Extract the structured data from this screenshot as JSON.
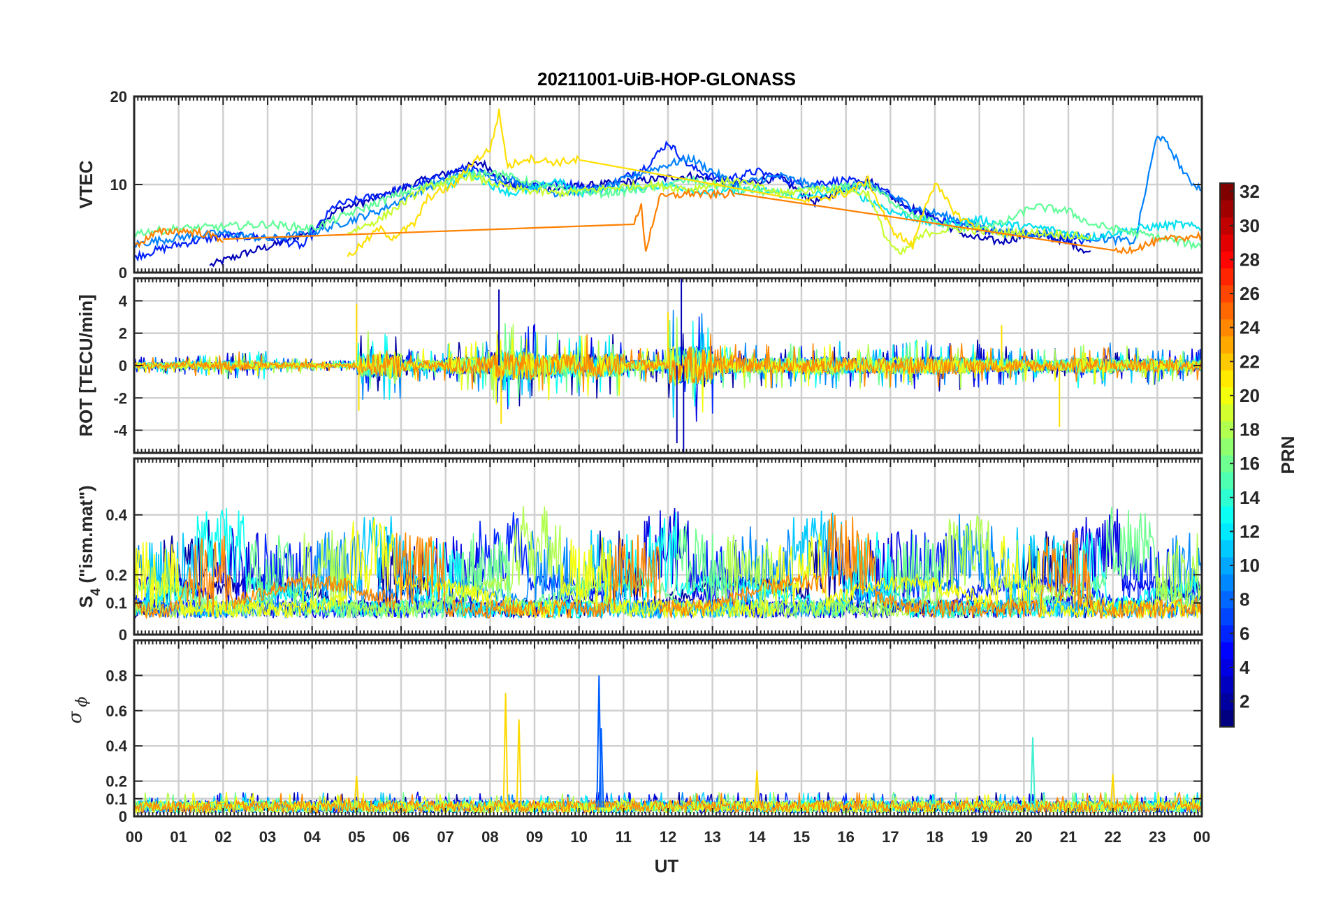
{
  "figure": {
    "title": "20211001-UiB-HOP-GLONASS",
    "x_axis": {
      "label": "UT",
      "range_hours": [
        0,
        24
      ],
      "tick_labels": [
        "00",
        "01",
        "02",
        "03",
        "04",
        "05",
        "06",
        "07",
        "08",
        "09",
        "10",
        "11",
        "12",
        "13",
        "14",
        "15",
        "16",
        "17",
        "18",
        "19",
        "20",
        "21",
        "22",
        "23",
        "00"
      ]
    }
  },
  "colorbar": {
    "label": "PRN",
    "range": [
      1,
      32
    ],
    "tick_labels": [
      "2",
      "4",
      "6",
      "8",
      "10",
      "12",
      "14",
      "16",
      "18",
      "20",
      "22",
      "24",
      "26",
      "28",
      "30",
      "32"
    ],
    "colormap": "jet"
  },
  "chart_data": [
    {
      "type": "line",
      "id": "vtec",
      "ylabel": "VTEC",
      "ylim": [
        0,
        20
      ],
      "y_tick_values": [
        0,
        10,
        20
      ],
      "y_tick_labels": [
        "0",
        "10",
        "20"
      ],
      "grid": true,
      "x_unit": "hours UT",
      "series": [
        {
          "prn": 2,
          "color": "#0000b8",
          "points": [
            [
              1.7,
              0.8
            ],
            [
              2.5,
              2.2
            ],
            [
              3.2,
              3.2
            ],
            [
              4.0,
              4.8
            ],
            [
              4.6,
              7.2
            ],
            [
              5.5,
              8.5
            ],
            [
              6.5,
              10.5
            ],
            [
              7.2,
              11.5
            ],
            [
              7.8,
              12.5
            ],
            [
              8.5,
              10.0
            ],
            [
              9.5,
              9.5
            ],
            [
              10.5,
              10.0
            ],
            [
              11.5,
              10.5
            ],
            [
              12.5,
              11.0
            ],
            [
              13.5,
              10.0
            ],
            [
              14.5,
              10.8
            ],
            [
              15.3,
              8.0
            ],
            [
              16.0,
              9.5
            ],
            [
              16.5,
              10.5
            ],
            [
              17.2,
              8.0
            ],
            [
              18.0,
              6.0
            ],
            [
              18.8,
              4.0
            ],
            [
              19.5,
              3.5
            ],
            [
              20.2,
              4.5
            ],
            [
              21.0,
              3.5
            ],
            [
              21.5,
              2.2
            ]
          ]
        },
        {
          "prn": 4,
          "color": "#0020ff",
          "points": [
            [
              0.0,
              1.8
            ],
            [
              1.0,
              3.2
            ],
            [
              2.0,
              4.2
            ],
            [
              3.0,
              4.0
            ],
            [
              3.8,
              3.0
            ],
            [
              4.5,
              7.6
            ],
            [
              5.5,
              8.8
            ],
            [
              6.5,
              10.2
            ],
            [
              7.5,
              12.0
            ],
            [
              8.5,
              9.8
            ],
            [
              9.5,
              10.2
            ],
            [
              10.5,
              9.5
            ],
            [
              11.5,
              12.0
            ],
            [
              12.0,
              14.8
            ],
            [
              12.5,
              12.0
            ],
            [
              13.2,
              10.5
            ],
            [
              14.0,
              11.5
            ],
            [
              15.0,
              10.0
            ],
            [
              16.0,
              10.5
            ],
            [
              16.8,
              9.5
            ],
            [
              17.5,
              7.0
            ],
            [
              18.5,
              5.5
            ],
            [
              19.5,
              4.5
            ],
            [
              20.5,
              4.0
            ],
            [
              21.5,
              3.5
            ]
          ]
        },
        {
          "prn": 9,
          "color": "#0080ff",
          "points": [
            [
              0.0,
              3.2
            ],
            [
              1.0,
              4.0
            ],
            [
              2.0,
              4.5
            ],
            [
              3.0,
              3.8
            ],
            [
              4.0,
              4.5
            ],
            [
              5.5,
              7.0
            ],
            [
              6.5,
              9.5
            ],
            [
              7.5,
              11.5
            ],
            [
              8.5,
              10.5
            ],
            [
              9.5,
              9.0
            ],
            [
              10.5,
              9.5
            ],
            [
              11.5,
              11.5
            ],
            [
              12.5,
              13.0
            ],
            [
              13.5,
              10.0
            ],
            [
              14.5,
              11.0
            ],
            [
              15.5,
              9.5
            ],
            [
              16.5,
              10.0
            ],
            [
              17.5,
              7.5
            ],
            [
              18.5,
              6.0
            ],
            [
              19.5,
              4.5
            ],
            [
              20.5,
              4.5
            ],
            [
              21.5,
              4.0
            ],
            [
              22.5,
              3.5
            ],
            [
              23.0,
              15.8
            ],
            [
              23.3,
              14.0
            ],
            [
              23.7,
              10.5
            ],
            [
              24.0,
              9.5
            ]
          ]
        },
        {
          "prn": 13,
          "color": "#00e0f0",
          "points": [
            [
              7.0,
              9.5
            ],
            [
              7.5,
              11.5
            ],
            [
              8.0,
              10.0
            ],
            [
              8.5,
              9.0
            ],
            [
              9.0,
              9.5
            ],
            [
              9.5,
              10.5
            ],
            [
              10.0,
              9.0
            ],
            [
              10.5,
              9.5
            ],
            [
              11.0,
              9.5
            ],
            [
              12.0,
              10.0
            ],
            [
              13.0,
              9.0
            ],
            [
              14.0,
              9.5
            ],
            [
              15.0,
              8.5
            ],
            [
              16.0,
              9.5
            ],
            [
              17.0,
              7.0
            ],
            [
              18.0,
              5.5
            ],
            [
              19.0,
              6.0
            ],
            [
              19.5,
              5.5
            ],
            [
              20.5,
              5.0
            ],
            [
              21.5,
              4.0
            ],
            [
              22.5,
              5.0
            ],
            [
              23.5,
              5.5
            ],
            [
              24.0,
              5.0
            ]
          ]
        },
        {
          "prn": 16,
          "color": "#60ff98",
          "points": [
            [
              0.0,
              4.5
            ],
            [
              1.0,
              5.0
            ],
            [
              2.0,
              5.2
            ],
            [
              3.0,
              5.5
            ],
            [
              4.0,
              5.0
            ],
            [
              5.0,
              7.0
            ],
            [
              6.0,
              9.0
            ],
            [
              7.0,
              10.5
            ],
            [
              8.0,
              11.5
            ],
            [
              8.7,
              10.5
            ],
            [
              9.5,
              9.5
            ],
            [
              10.5,
              9.0
            ],
            [
              11.5,
              9.5
            ],
            [
              12.5,
              10.5
            ],
            [
              13.5,
              9.5
            ],
            [
              14.5,
              9.0
            ],
            [
              15.5,
              9.5
            ],
            [
              16.5,
              10.0
            ],
            [
              17.5,
              6.5
            ],
            [
              18.5,
              5.0
            ],
            [
              19.5,
              5.5
            ],
            [
              20.2,
              7.5
            ],
            [
              21.0,
              7.0
            ],
            [
              21.5,
              5.5
            ],
            [
              22.5,
              4.5
            ],
            [
              23.5,
              3.5
            ],
            [
              24.0,
              3.0
            ]
          ]
        },
        {
          "prn": 18,
          "color": "#c8ff30",
          "points": [
            [
              4.8,
              4.5
            ],
            [
              5.5,
              6.0
            ],
            [
              6.5,
              9.5
            ],
            [
              7.5,
              11.0
            ],
            [
              8.5,
              9.5
            ],
            [
              9.5,
              9.0
            ],
            [
              10.5,
              9.5
            ],
            [
              11.5,
              10.0
            ],
            [
              12.5,
              9.5
            ],
            [
              13.5,
              10.5
            ],
            [
              14.5,
              9.0
            ],
            [
              15.5,
              9.5
            ],
            [
              16.5,
              9.0
            ],
            [
              16.9,
              4.0
            ],
            [
              17.2,
              2.0
            ],
            [
              17.8,
              4.5
            ],
            [
              18.5,
              5.0
            ],
            [
              19.5,
              4.5
            ],
            [
              20.5,
              4.5
            ],
            [
              21.5,
              4.0
            ]
          ]
        },
        {
          "prn": 20,
          "color": "#ffe000",
          "points": [
            [
              4.8,
              1.8
            ],
            [
              5.2,
              3.5
            ],
            [
              5.5,
              5.0
            ],
            [
              5.8,
              4.0
            ],
            [
              6.3,
              5.5
            ],
            [
              6.6,
              8.5
            ],
            [
              7.2,
              10.0
            ],
            [
              7.6,
              12.5
            ],
            [
              8.0,
              14.0
            ],
            [
              8.2,
              18.2
            ],
            [
              8.4,
              12.0
            ],
            [
              8.8,
              13.0
            ],
            [
              9.5,
              12.5
            ],
            [
              10.0,
              12.8
            ],
            [
              15.0,
              8.0
            ],
            [
              16.0,
              9.0
            ],
            [
              16.5,
              10.5
            ],
            [
              17.0,
              5.0
            ],
            [
              17.5,
              3.0
            ],
            [
              17.8,
              8.0
            ],
            [
              18.0,
              10.0
            ],
            [
              18.5,
              6.5
            ],
            [
              19.0,
              5.0
            ]
          ]
        },
        {
          "prn": 24,
          "color": "#ff8000",
          "points": [
            [
              0.0,
              3.0
            ],
            [
              0.5,
              4.5
            ],
            [
              1.0,
              4.8
            ],
            [
              1.5,
              4.5
            ],
            [
              2.0,
              3.8
            ],
            [
              11.2,
              5.0
            ],
            [
              11.4,
              7.5
            ],
            [
              11.5,
              2.5
            ],
            [
              11.8,
              8.5
            ],
            [
              12.5,
              9.0
            ],
            [
              13.0,
              8.8
            ],
            [
              13.5,
              9.0
            ],
            [
              22.0,
              2.2
            ],
            [
              22.5,
              2.8
            ],
            [
              23.0,
              3.5
            ],
            [
              23.5,
              4.0
            ],
            [
              24.0,
              4.2
            ]
          ]
        }
      ]
    },
    {
      "type": "line",
      "id": "rot",
      "ylabel": "ROT [TECU/min]",
      "ylim": [
        -5.4,
        5.4
      ],
      "y_tick_values": [
        -4,
        -2,
        0,
        2,
        4
      ],
      "y_tick_labels": [
        "-4",
        "-2",
        "0",
        "2",
        "4"
      ],
      "grid": true,
      "x_unit": "hours UT",
      "noise_amplitude_by_hour": [
        0.3,
        0.4,
        0.5,
        0.3,
        0.2,
        1.2,
        0.6,
        0.9,
        1.5,
        1.2,
        1.2,
        0.6,
        2.0,
        0.8,
        0.8,
        0.9,
        0.8,
        0.9,
        0.9,
        0.7,
        0.6,
        0.8,
        0.7,
        0.6
      ],
      "spikes": [
        {
          "t": 5.0,
          "value": 3.8
        },
        {
          "t": 5.05,
          "value": -2.8
        },
        {
          "t": 8.2,
          "value": 4.7
        },
        {
          "t": 8.25,
          "value": -3.6
        },
        {
          "t": 12.3,
          "value": 5.4
        },
        {
          "t": 12.35,
          "value": -5.4
        },
        {
          "t": 12.2,
          "value": -4.8
        },
        {
          "t": 12.0,
          "value": 3.3
        },
        {
          "t": 20.8,
          "value": -3.8
        },
        {
          "t": 19.5,
          "value": 2.5
        }
      ]
    },
    {
      "type": "line",
      "id": "s4",
      "ylabel": "S4 (\"ism.mat\")",
      "ylabel_main": "S",
      "ylabel_sub": "4",
      "ylabel_rest": " (\"ism.mat\")",
      "ylim": [
        0,
        0.6
      ],
      "scale": "log-like",
      "y_tick_values": [
        0,
        0.1,
        0.2,
        0.4
      ],
      "y_tick_labels": [
        "0",
        "0.1",
        "0.2",
        "0.4"
      ],
      "grid": true,
      "x_unit": "hours UT"
    },
    {
      "type": "line",
      "id": "sigma_phi",
      "ylabel": "σ ϕ",
      "ylabel_main": "σ",
      "ylabel_sub": "ϕ",
      "ylim": [
        0,
        1
      ],
      "y_tick_values": [
        0,
        0.1,
        0.2,
        0.4,
        0.6,
        0.8
      ],
      "y_tick_labels": [
        "0",
        "0.1",
        "0.2",
        "0.4",
        "0.6",
        "0.8"
      ],
      "grid": true,
      "x_unit": "hours UT",
      "spikes": [
        {
          "t": 8.35,
          "value": 0.7
        },
        {
          "t": 8.65,
          "value": 0.55
        },
        {
          "t": 10.45,
          "value": 0.8
        },
        {
          "t": 10.5,
          "value": 0.5
        },
        {
          "t": 20.2,
          "value": 0.45
        },
        {
          "t": 22.0,
          "value": 0.24
        },
        {
          "t": 5.0,
          "value": 0.23
        },
        {
          "t": 14.0,
          "value": 0.26
        }
      ]
    }
  ]
}
